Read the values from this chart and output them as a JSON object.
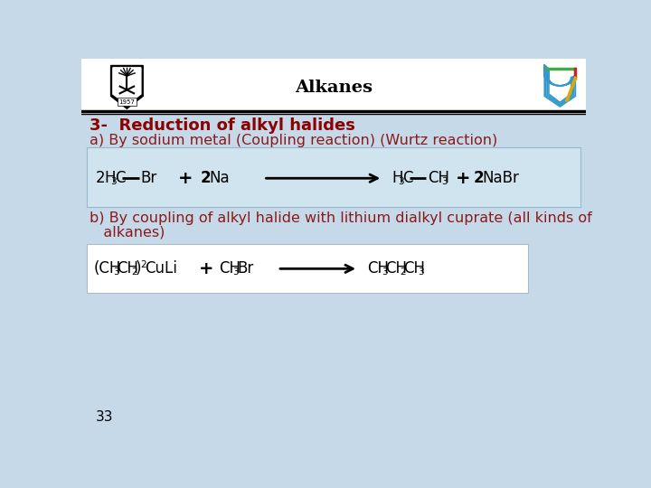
{
  "title": "Alkanes",
  "bg_color": "#c5d9e8",
  "header_bg": "#ffffff",
  "title_color": "#000000",
  "heading1": "3-  Reduction of alkyl halides",
  "heading1_color": "#8b0000",
  "text_a": "a) By sodium metal (Coupling reaction) (Wurtz reaction)",
  "text_a_color": "#8b1a1a",
  "text_b1": "b) By coupling of alkyl halide with lithium dialkyl cuprate (all kinds of",
  "text_b2": "   alkanes)",
  "text_b_color": "#8b1a1a",
  "page_number": "33",
  "rxn1_box_color": "#d0e4f0",
  "rxn2_box_color": "#ffffff",
  "black": "#000000"
}
